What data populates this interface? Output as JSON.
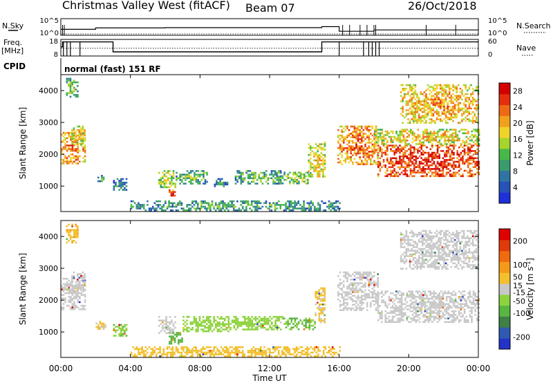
{
  "header": {
    "title": "Christmas Valley West (fitACF)",
    "beam": "Beam 07",
    "date": "26/Oct/2018"
  },
  "status_panel": {
    "nsky_label": "N.Sky",
    "nsky_ticks": [
      "10^5",
      "10^0"
    ],
    "nsearch_label": "N.Search",
    "nsearch_ticks": [
      "10^5",
      "10^0"
    ],
    "freq_label": "Freq.",
    "freq_unit": "[MHz]",
    "freq_ticks": [
      "18",
      "8"
    ],
    "nave_label": "Nave",
    "nave_ticks": [
      "60",
      "0"
    ],
    "cpid_label": "CPID",
    "cpid_value": "normal (fast) 151 RF"
  },
  "x_axis": {
    "label": "Time UT",
    "ticks": [
      "00:00",
      "04:00",
      "08:00",
      "12:00",
      "16:00",
      "20:00",
      "00:00"
    ],
    "range_hours": [
      0,
      24
    ]
  },
  "colors": {
    "power_scale": [
      "#1f2fd9",
      "#2752b8",
      "#2f74a4",
      "#3a9c6c",
      "#48b84a",
      "#a6d52b",
      "#f0d42a",
      "#f2a11d",
      "#ef6a14",
      "#e52e0e",
      "#d40000"
    ],
    "velocity_scale": [
      "#2433c7",
      "#2f5ab2",
      "#3f8046",
      "#58b542",
      "#8ed23e",
      "#c8c8c8",
      "#f3bf2e",
      "#f59a18",
      "#f06a10",
      "#e03a0a",
      "#e00000"
    ]
  },
  "chart_data": [
    {
      "type": "heatmap",
      "name": "power",
      "ylabel": "Slant Range [km]",
      "yticks": [
        1000,
        2000,
        3000,
        4000
      ],
      "ylim": [
        200,
        4500
      ],
      "xlim": [
        0,
        24
      ],
      "colorbar": {
        "label": "Power [dB]",
        "ticks": [
          "4",
          "8",
          "12",
          "16",
          "20",
          "24",
          "28"
        ],
        "range": [
          0,
          30
        ]
      },
      "echo_regions": [
        {
          "t": [
            0.0,
            1.4
          ],
          "r": [
            1700,
            2700
          ],
          "v": 24
        },
        {
          "t": [
            0.6,
            1.4
          ],
          "r": [
            2300,
            2900
          ],
          "v": 20
        },
        {
          "t": [
            0.3,
            1.0
          ],
          "r": [
            3800,
            4400
          ],
          "v": 14
        },
        {
          "t": [
            2.1,
            2.5
          ],
          "r": [
            1150,
            1350
          ],
          "v": 10
        },
        {
          "t": [
            3.0,
            3.8
          ],
          "r": [
            900,
            1250
          ],
          "v": 10
        },
        {
          "t": [
            5.6,
            6.6
          ],
          "r": [
            950,
            1500
          ],
          "v": 18
        },
        {
          "t": [
            6.2,
            6.6
          ],
          "r": [
            650,
            900
          ],
          "v": 26
        },
        {
          "t": [
            6.6,
            8.4
          ],
          "r": [
            1100,
            1500
          ],
          "v": 14
        },
        {
          "t": [
            8.8,
            9.6
          ],
          "r": [
            1000,
            1250
          ],
          "v": 10
        },
        {
          "t": [
            10.0,
            12.6
          ],
          "r": [
            1100,
            1500
          ],
          "v": 14
        },
        {
          "t": [
            12.6,
            14.2
          ],
          "r": [
            1100,
            1450
          ],
          "v": 16
        },
        {
          "t": [
            14.2,
            15.2
          ],
          "r": [
            1300,
            2400
          ],
          "v": 20
        },
        {
          "t": [
            4.0,
            16.0
          ],
          "r": [
            250,
            550
          ],
          "v": 12
        },
        {
          "t": [
            15.9,
            18.2
          ],
          "r": [
            1700,
            2900
          ],
          "v": 24
        },
        {
          "t": [
            18.2,
            24.0
          ],
          "r": [
            1300,
            2300
          ],
          "v": 28
        },
        {
          "t": [
            18.0,
            24.0
          ],
          "r": [
            2300,
            2800
          ],
          "v": 20
        },
        {
          "t": [
            19.5,
            24.0
          ],
          "r": [
            3000,
            4200
          ],
          "v": 22
        }
      ]
    },
    {
      "type": "heatmap",
      "name": "velocity",
      "ylabel": "Slant Range [km]",
      "yticks": [
        1000,
        2000,
        3000,
        4000
      ],
      "ylim": [
        200,
        4500
      ],
      "xlim": [
        0,
        24
      ],
      "colorbar": {
        "label": "Velocity [m s^-1]",
        "ticks": [
          "200",
          "100",
          "50",
          "15",
          "-15",
          "-50",
          "-100",
          "-200"
        ],
        "range": [
          -250,
          250
        ]
      },
      "echo_regions": [
        {
          "t": [
            0.0,
            1.4
          ],
          "r": [
            1700,
            2700
          ],
          "v": 0
        },
        {
          "t": [
            0.6,
            1.4
          ],
          "r": [
            2300,
            2900
          ],
          "v": 0
        },
        {
          "t": [
            0.3,
            1.0
          ],
          "r": [
            3800,
            4400
          ],
          "v": 60
        },
        {
          "t": [
            2.0,
            2.6
          ],
          "r": [
            1100,
            1350
          ],
          "v": 30
        },
        {
          "t": [
            3.0,
            3.8
          ],
          "r": [
            900,
            1250
          ],
          "v": -60
        },
        {
          "t": [
            5.6,
            6.6
          ],
          "r": [
            950,
            1500
          ],
          "v": 0
        },
        {
          "t": [
            6.2,
            7.0
          ],
          "r": [
            650,
            1000
          ],
          "v": -80
        },
        {
          "t": [
            7.0,
            9.6
          ],
          "r": [
            1000,
            1500
          ],
          "v": -40
        },
        {
          "t": [
            9.6,
            12.8
          ],
          "r": [
            1100,
            1500
          ],
          "v": -40
        },
        {
          "t": [
            12.8,
            14.6
          ],
          "r": [
            1100,
            1450
          ],
          "v": -70
        },
        {
          "t": [
            14.6,
            15.2
          ],
          "r": [
            1300,
            2400
          ],
          "v": 30
        },
        {
          "t": [
            4.0,
            16.0
          ],
          "r": [
            250,
            550
          ],
          "v": 40
        },
        {
          "t": [
            15.9,
            18.2
          ],
          "r": [
            1700,
            2900
          ],
          "v": 0
        },
        {
          "t": [
            18.2,
            24.0
          ],
          "r": [
            1300,
            2300
          ],
          "v": 0
        },
        {
          "t": [
            19.5,
            24.0
          ],
          "r": [
            3000,
            4200
          ],
          "v": 0
        }
      ]
    }
  ],
  "nsky_series": {
    "x": [
      0,
      2,
      6,
      10,
      14,
      15,
      16,
      18,
      24
    ],
    "y": [
      1.8,
      2.2,
      2.3,
      2.3,
      2.3,
      2.6,
      1.2,
      1.6,
      1.7
    ]
  },
  "freq_series": {
    "x": [
      0,
      0.1,
      2.9,
      3.0,
      14.9,
      15.0,
      16.4,
      16.5,
      24
    ],
    "y": [
      13.5,
      16.5,
      16.5,
      10.5,
      10.5,
      16.5,
      16.5,
      16.5,
      16.5
    ]
  },
  "nave_series": {
    "x": [
      0,
      24
    ],
    "y": [
      28,
      28
    ]
  }
}
